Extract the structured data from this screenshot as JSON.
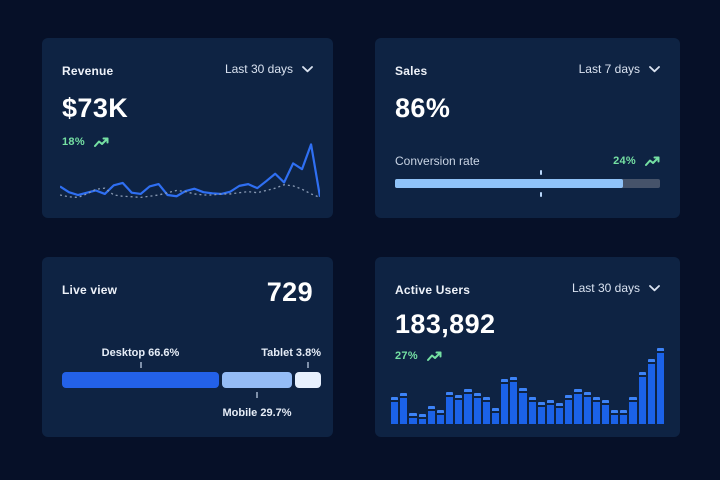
{
  "colors": {
    "page_bg": "#061028",
    "card_bg": "#0e2343",
    "line_blue": "#2f6ff2",
    "line_dashed_gray": "#8899b3",
    "bar_blue": "#1b62e8",
    "bar_cap_blue": "#3d83f7",
    "progress_fill": "#8fc2f8",
    "progress_track": "#46536a",
    "desktop_blue": "#2361e8",
    "mobile_blue": "#94bcf6",
    "tablet_blue": "#e7f0fd",
    "delta_green": "#75e0a3"
  },
  "cards": {
    "revenue": {
      "title": "Revenue",
      "period": "Last 30 days",
      "value": "$73K",
      "delta": "18%"
    },
    "sales": {
      "title": "Sales",
      "period": "Last 7 days",
      "value": "86%",
      "metric_label": "Conversion rate",
      "delta": "24%"
    },
    "live_view": {
      "title": "Live view",
      "value": "729",
      "labels": {
        "desktop": "Desktop 66.6%",
        "mobile": "Mobile 29.7%",
        "tablet": "Tablet 3.8%"
      }
    },
    "active_users": {
      "title": "Active Users",
      "period": "Last 30 days",
      "value": "183,892",
      "delta": "27%"
    }
  },
  "chart_data": [
    {
      "card": "revenue",
      "type": "line",
      "title": "Revenue",
      "subtitle": "Last 30 days",
      "legend": "none",
      "grid": false,
      "ylim": [
        0,
        100
      ],
      "series": [
        {
          "name": "current",
          "style": "solid",
          "color": "#2f6ff2",
          "values": [
            24,
            14,
            9,
            13,
            17,
            11,
            26,
            30,
            13,
            11,
            24,
            28,
            9,
            7,
            16,
            20,
            14,
            12,
            11,
            15,
            25,
            28,
            21,
            33,
            46,
            31,
            64,
            54,
            97,
            6
          ]
        },
        {
          "name": "previous",
          "style": "dashed",
          "color": "#8899b3",
          "values": [
            9,
            6,
            5,
            11,
            19,
            21,
            9,
            7,
            6,
            5,
            7,
            9,
            13,
            17,
            15,
            11,
            9,
            9,
            11,
            11,
            13,
            15,
            13,
            17,
            21,
            27,
            25,
            19,
            11,
            5
          ]
        }
      ]
    },
    {
      "card": "sales",
      "type": "bar",
      "title": "Conversion rate",
      "values": [
        86
      ],
      "max": 100,
      "marker": 55
    },
    {
      "card": "live_view",
      "type": "bar",
      "title": "Live view",
      "categories": [
        "Desktop",
        "Mobile",
        "Tablet"
      ],
      "values": [
        66.6,
        29.7,
        3.8
      ],
      "unit": "%"
    },
    {
      "card": "active_users",
      "type": "bar",
      "title": "Active Users",
      "subtitle": "Last 30 days",
      "ylim": [
        0,
        100
      ],
      "values": [
        35,
        41,
        15,
        13,
        24,
        19,
        42,
        38,
        46,
        41,
        36,
        21,
        59,
        62,
        48,
        35,
        29,
        32,
        28,
        38,
        46,
        42,
        36,
        32,
        19,
        18,
        35,
        68,
        85,
        100
      ]
    }
  ]
}
